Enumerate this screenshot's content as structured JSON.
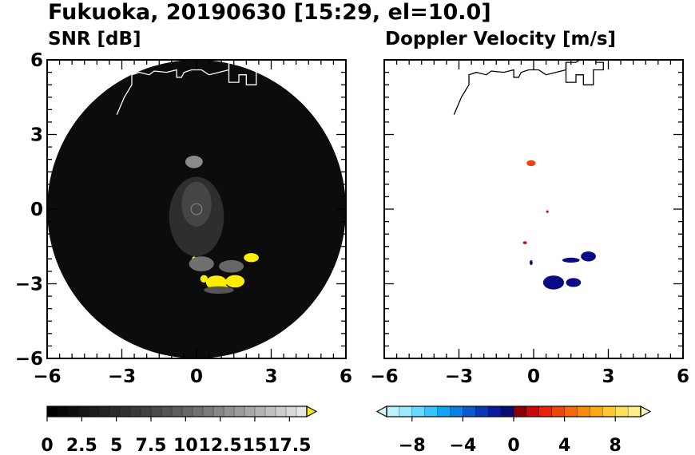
{
  "title": "Fukuoka, 20190630 [15:29, el=10.0]",
  "chart_data": [
    {
      "type": "heatmap",
      "title": "SNR [dB]",
      "xlim": [
        -6,
        6
      ],
      "ylim": [
        -6,
        6
      ],
      "x_ticks": [
        -6,
        -3,
        0,
        3,
        6
      ],
      "y_ticks": [
        -6,
        -3,
        0,
        3,
        6
      ],
      "x_tick_labels": [
        "−6",
        "−3",
        "0",
        "3",
        "6"
      ],
      "y_tick_labels": [
        "−6",
        "−3",
        "0",
        "3",
        "6"
      ],
      "radar_range": 6,
      "background_color": "#0c0c0c",
      "colorbar": {
        "min": 0,
        "max": 18.75,
        "step": 0.75,
        "extend": "max",
        "tick_values": [
          0,
          2.5,
          5,
          7.5,
          10,
          12.5,
          15,
          17.5
        ],
        "tick_labels": [
          "0",
          "2.5",
          "5",
          "7.5",
          "10",
          "12.5",
          "15",
          "17.5"
        ],
        "colors": [
          "#000000",
          "#070707",
          "#0e0e0e",
          "#151515",
          "#1c1c1c",
          "#232323",
          "#2a2a2a",
          "#323232",
          "#3a3a3a",
          "#424242",
          "#4b4b4b",
          "#545454",
          "#5d5d5d",
          "#676767",
          "#717171",
          "#7b7b7b",
          "#868686",
          "#919191",
          "#9c9c9c",
          "#a8a8a8",
          "#b4b4b4",
          "#c0c0c0",
          "#cdcdcd",
          "#dadada",
          "#e7e7e7"
        ],
        "over_color": "#ffee00"
      },
      "echoes": [
        {
          "x": 0.8,
          "y": -2.95,
          "rx": 0.42,
          "ry": 0.28,
          "color": "#ffee00"
        },
        {
          "x": 1.55,
          "y": -2.9,
          "rx": 0.38,
          "ry": 0.25,
          "color": "#ffee00"
        },
        {
          "x": 2.2,
          "y": -1.95,
          "rx": 0.3,
          "ry": 0.18,
          "color": "#ffee00"
        },
        {
          "x": 1.0,
          "y": -3.2,
          "rx": 0.3,
          "ry": 0.18,
          "color": "#ffee00"
        },
        {
          "x": -0.1,
          "y": -2.1,
          "rx": 0.1,
          "ry": 0.2,
          "color": "#ffee00"
        },
        {
          "x": 0.3,
          "y": -2.8,
          "rx": 0.15,
          "ry": 0.15,
          "color": "#ffee00"
        },
        {
          "x": 0.2,
          "y": -2.2,
          "rx": 0.5,
          "ry": 0.3,
          "color": "#707070"
        },
        {
          "x": 1.4,
          "y": -2.3,
          "rx": 0.5,
          "ry": 0.25,
          "color": "#666666"
        },
        {
          "x": 0.9,
          "y": -3.25,
          "rx": 0.6,
          "ry": 0.15,
          "color": "#555555"
        },
        {
          "x": -0.1,
          "y": 1.9,
          "rx": 0.35,
          "ry": 0.25,
          "color": "#8a8a8a"
        }
      ]
    },
    {
      "type": "heatmap",
      "title": "Doppler Velocity [m/s]",
      "xlim": [
        -6,
        6
      ],
      "ylim": [
        -6,
        6
      ],
      "x_ticks": [
        -6,
        -3,
        0,
        3,
        6
      ],
      "y_ticks": [
        -6,
        -3,
        0,
        3,
        6
      ],
      "x_tick_labels": [
        "−6",
        "−3",
        "0",
        "3",
        "6"
      ],
      "colorbar": {
        "min": -10,
        "max": 10,
        "step": 1,
        "extend": "both",
        "tick_values": [
          -8,
          -4,
          0,
          4,
          8
        ],
        "tick_labels": [
          "−8",
          "−4",
          "0",
          "4",
          "8"
        ],
        "colors": [
          "#bff2ff",
          "#9ceaff",
          "#6ad9ff",
          "#39c3ff",
          "#14a5f2",
          "#0a80e0",
          "#0a5ad0",
          "#0a36b8",
          "#0a1a9a",
          "#0a0a70",
          "#8a0000",
          "#c80a0a",
          "#e8240a",
          "#f0460a",
          "#f5690a",
          "#f98a0a",
          "#fcaa14",
          "#fdc832",
          "#fee05a",
          "#fff08c"
        ],
        "under_color": "#d9fbff",
        "over_color": "#fff8c0"
      },
      "echoes": [
        {
          "x": -0.1,
          "y": 1.85,
          "rx": 0.18,
          "ry": 0.12,
          "color": "#f04010"
        },
        {
          "x": 0.8,
          "y": -2.95,
          "rx": 0.42,
          "ry": 0.28,
          "color": "#0a0a88"
        },
        {
          "x": 1.6,
          "y": -2.95,
          "rx": 0.3,
          "ry": 0.18,
          "color": "#0a0a88"
        },
        {
          "x": 2.2,
          "y": -1.9,
          "rx": 0.3,
          "ry": 0.2,
          "color": "#0a0a88"
        },
        {
          "x": 1.5,
          "y": -2.05,
          "rx": 0.35,
          "ry": 0.1,
          "color": "#0a0a88"
        },
        {
          "x": -0.1,
          "y": -2.15,
          "rx": 0.06,
          "ry": 0.1,
          "color": "#0a0a88"
        },
        {
          "x": -0.35,
          "y": -1.35,
          "rx": 0.08,
          "ry": 0.06,
          "color": "#c80a0a"
        },
        {
          "x": 0.55,
          "y": -0.1,
          "rx": 0.05,
          "ry": 0.05,
          "color": "#c80a0a"
        }
      ]
    }
  ]
}
